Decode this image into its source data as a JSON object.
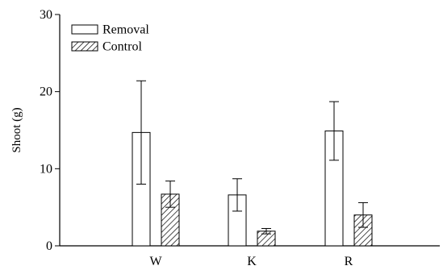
{
  "chart_data": {
    "type": "bar",
    "title": "",
    "xlabel": "",
    "ylabel": "Shoot (g)",
    "ylim": [
      0,
      30
    ],
    "yticks": [
      0,
      10,
      20,
      30
    ],
    "categories": [
      "W",
      "K",
      "R"
    ],
    "series": [
      {
        "name": "Removal",
        "values": [
          14.7,
          6.6,
          14.9
        ],
        "error": [
          6.7,
          2.1,
          3.8
        ],
        "fill": "#ffffff"
      },
      {
        "name": "Control",
        "values": [
          6.7,
          1.9,
          4.0
        ],
        "error": [
          1.7,
          0.35,
          1.6
        ],
        "fill": "hatched"
      }
    ],
    "legend": "top-left",
    "grid": false
  },
  "colors": {
    "axis": "#000000",
    "bar_stroke": "#000000",
    "hatch": "#000000",
    "background": "#ffffff"
  }
}
